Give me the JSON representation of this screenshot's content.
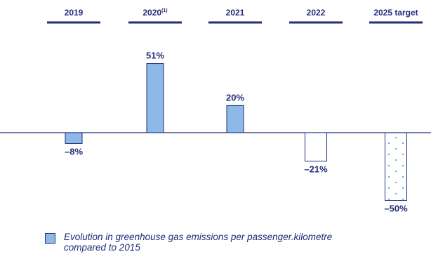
{
  "chart_data": {
    "type": "bar",
    "categories": [
      "2019",
      "2020",
      "2021",
      "2022",
      "2025 target"
    ],
    "category_superscripts": [
      "",
      "(1)",
      "",
      "",
      ""
    ],
    "values": [
      -8,
      51,
      20,
      -21,
      -50
    ],
    "value_labels": [
      "–8%",
      "51%",
      "20%",
      "–21%",
      "–50%"
    ],
    "bar_styles": [
      "filled",
      "filled",
      "filled",
      "outline",
      "dotted"
    ],
    "ylim": [
      -55,
      60
    ],
    "legend": {
      "line1": "Evolution in greenhouse gas emissions per passenger.kilometre",
      "line2": "compared to 2015"
    },
    "colors": {
      "navy": "#1f2d7a",
      "bar_fill": "#8db8e8",
      "baseline": "#1f2d7a",
      "dot": "#4aa8e0"
    }
  }
}
